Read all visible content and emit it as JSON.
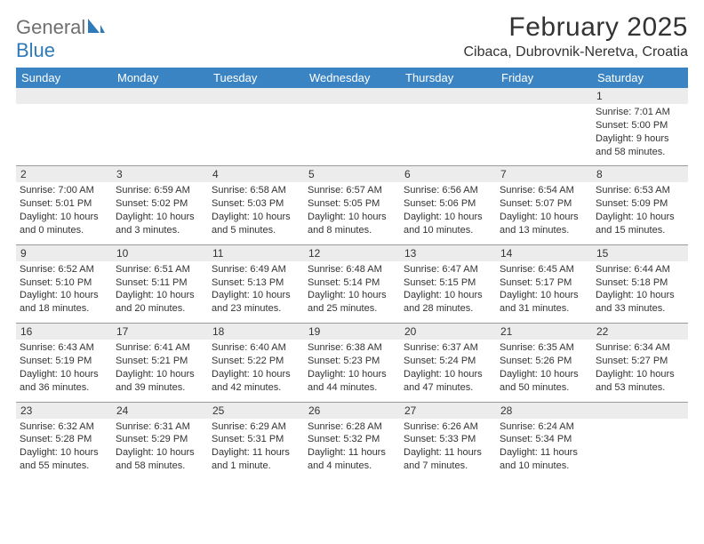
{
  "brand": {
    "part1": "General",
    "part2": "Blue"
  },
  "title": "February 2025",
  "location": "Cibaca, Dubrovnik-Neretva, Croatia",
  "colors": {
    "header_bg": "#3a84c4",
    "header_text": "#ffffff",
    "numrow_bg": "#ececec",
    "numrow_border": "#9a9a9a",
    "logo_gray": "#6f6f6f",
    "logo_blue": "#2f7ab8",
    "text": "#333333",
    "page_bg": "#ffffff"
  },
  "fonts": {
    "family": "Arial",
    "title_size": 30,
    "location_size": 16,
    "dayhead_size": 13,
    "daynum_size": 12,
    "body_size": 11
  },
  "dayNames": [
    "Sunday",
    "Monday",
    "Tuesday",
    "Wednesday",
    "Thursday",
    "Friday",
    "Saturday"
  ],
  "weeks": [
    [
      null,
      null,
      null,
      null,
      null,
      null,
      {
        "n": "1",
        "sr": "Sunrise: 7:01 AM",
        "ss": "Sunset: 5:00 PM",
        "d1": "Daylight: 9 hours",
        "d2": "and 58 minutes."
      }
    ],
    [
      {
        "n": "2",
        "sr": "Sunrise: 7:00 AM",
        "ss": "Sunset: 5:01 PM",
        "d1": "Daylight: 10 hours",
        "d2": "and 0 minutes."
      },
      {
        "n": "3",
        "sr": "Sunrise: 6:59 AM",
        "ss": "Sunset: 5:02 PM",
        "d1": "Daylight: 10 hours",
        "d2": "and 3 minutes."
      },
      {
        "n": "4",
        "sr": "Sunrise: 6:58 AM",
        "ss": "Sunset: 5:03 PM",
        "d1": "Daylight: 10 hours",
        "d2": "and 5 minutes."
      },
      {
        "n": "5",
        "sr": "Sunrise: 6:57 AM",
        "ss": "Sunset: 5:05 PM",
        "d1": "Daylight: 10 hours",
        "d2": "and 8 minutes."
      },
      {
        "n": "6",
        "sr": "Sunrise: 6:56 AM",
        "ss": "Sunset: 5:06 PM",
        "d1": "Daylight: 10 hours",
        "d2": "and 10 minutes."
      },
      {
        "n": "7",
        "sr": "Sunrise: 6:54 AM",
        "ss": "Sunset: 5:07 PM",
        "d1": "Daylight: 10 hours",
        "d2": "and 13 minutes."
      },
      {
        "n": "8",
        "sr": "Sunrise: 6:53 AM",
        "ss": "Sunset: 5:09 PM",
        "d1": "Daylight: 10 hours",
        "d2": "and 15 minutes."
      }
    ],
    [
      {
        "n": "9",
        "sr": "Sunrise: 6:52 AM",
        "ss": "Sunset: 5:10 PM",
        "d1": "Daylight: 10 hours",
        "d2": "and 18 minutes."
      },
      {
        "n": "10",
        "sr": "Sunrise: 6:51 AM",
        "ss": "Sunset: 5:11 PM",
        "d1": "Daylight: 10 hours",
        "d2": "and 20 minutes."
      },
      {
        "n": "11",
        "sr": "Sunrise: 6:49 AM",
        "ss": "Sunset: 5:13 PM",
        "d1": "Daylight: 10 hours",
        "d2": "and 23 minutes."
      },
      {
        "n": "12",
        "sr": "Sunrise: 6:48 AM",
        "ss": "Sunset: 5:14 PM",
        "d1": "Daylight: 10 hours",
        "d2": "and 25 minutes."
      },
      {
        "n": "13",
        "sr": "Sunrise: 6:47 AM",
        "ss": "Sunset: 5:15 PM",
        "d1": "Daylight: 10 hours",
        "d2": "and 28 minutes."
      },
      {
        "n": "14",
        "sr": "Sunrise: 6:45 AM",
        "ss": "Sunset: 5:17 PM",
        "d1": "Daylight: 10 hours",
        "d2": "and 31 minutes."
      },
      {
        "n": "15",
        "sr": "Sunrise: 6:44 AM",
        "ss": "Sunset: 5:18 PM",
        "d1": "Daylight: 10 hours",
        "d2": "and 33 minutes."
      }
    ],
    [
      {
        "n": "16",
        "sr": "Sunrise: 6:43 AM",
        "ss": "Sunset: 5:19 PM",
        "d1": "Daylight: 10 hours",
        "d2": "and 36 minutes."
      },
      {
        "n": "17",
        "sr": "Sunrise: 6:41 AM",
        "ss": "Sunset: 5:21 PM",
        "d1": "Daylight: 10 hours",
        "d2": "and 39 minutes."
      },
      {
        "n": "18",
        "sr": "Sunrise: 6:40 AM",
        "ss": "Sunset: 5:22 PM",
        "d1": "Daylight: 10 hours",
        "d2": "and 42 minutes."
      },
      {
        "n": "19",
        "sr": "Sunrise: 6:38 AM",
        "ss": "Sunset: 5:23 PM",
        "d1": "Daylight: 10 hours",
        "d2": "and 44 minutes."
      },
      {
        "n": "20",
        "sr": "Sunrise: 6:37 AM",
        "ss": "Sunset: 5:24 PM",
        "d1": "Daylight: 10 hours",
        "d2": "and 47 minutes."
      },
      {
        "n": "21",
        "sr": "Sunrise: 6:35 AM",
        "ss": "Sunset: 5:26 PM",
        "d1": "Daylight: 10 hours",
        "d2": "and 50 minutes."
      },
      {
        "n": "22",
        "sr": "Sunrise: 6:34 AM",
        "ss": "Sunset: 5:27 PM",
        "d1": "Daylight: 10 hours",
        "d2": "and 53 minutes."
      }
    ],
    [
      {
        "n": "23",
        "sr": "Sunrise: 6:32 AM",
        "ss": "Sunset: 5:28 PM",
        "d1": "Daylight: 10 hours",
        "d2": "and 55 minutes."
      },
      {
        "n": "24",
        "sr": "Sunrise: 6:31 AM",
        "ss": "Sunset: 5:29 PM",
        "d1": "Daylight: 10 hours",
        "d2": "and 58 minutes."
      },
      {
        "n": "25",
        "sr": "Sunrise: 6:29 AM",
        "ss": "Sunset: 5:31 PM",
        "d1": "Daylight: 11 hours",
        "d2": "and 1 minute."
      },
      {
        "n": "26",
        "sr": "Sunrise: 6:28 AM",
        "ss": "Sunset: 5:32 PM",
        "d1": "Daylight: 11 hours",
        "d2": "and 4 minutes."
      },
      {
        "n": "27",
        "sr": "Sunrise: 6:26 AM",
        "ss": "Sunset: 5:33 PM",
        "d1": "Daylight: 11 hours",
        "d2": "and 7 minutes."
      },
      {
        "n": "28",
        "sr": "Sunrise: 6:24 AM",
        "ss": "Sunset: 5:34 PM",
        "d1": "Daylight: 11 hours",
        "d2": "and 10 minutes."
      },
      null
    ]
  ]
}
